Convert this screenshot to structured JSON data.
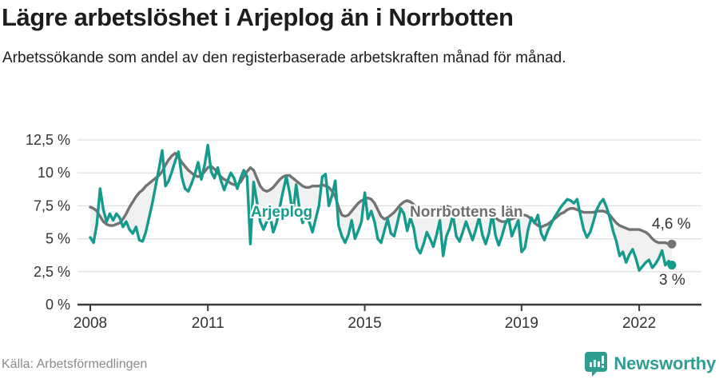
{
  "header": {
    "title": "Lägre arbetslöshet i Arjeplog än i Norrbotten",
    "subtitle": "Arbetssökande som andel av den registerbaserade arbetskraften månad för månad."
  },
  "chart_data": {
    "type": "line",
    "title": "Lägre arbetslöshet i Arjeplog än i Norrbotten",
    "unit": "%",
    "frequency": "monthly",
    "x_start": "2008-01",
    "x_end": "2022-11",
    "ylim": [
      0,
      12.5
    ],
    "grid": "horizontal",
    "legend": "inline-labels",
    "yticks": [
      {
        "value": 0,
        "label": "0 %"
      },
      {
        "value": 2.5,
        "label": "2,5 %"
      },
      {
        "value": 5,
        "label": "5 %"
      },
      {
        "value": 7.5,
        "label": "7,5 %"
      },
      {
        "value": 10,
        "label": "10 %"
      },
      {
        "value": 12.5,
        "label": "12,5 %"
      }
    ],
    "xticks": [
      {
        "label": "2008",
        "month_index": 0
      },
      {
        "label": "2011",
        "month_index": 36
      },
      {
        "label": "2015",
        "month_index": 84
      },
      {
        "label": "2019",
        "month_index": 132
      },
      {
        "label": "2022",
        "month_index": 168
      }
    ],
    "series": [
      {
        "name": "Norrbottens län",
        "color": "#737373",
        "end_label": "4,6 %",
        "values": [
          7.4,
          7.3,
          7.1,
          6.7,
          6.3,
          6.1,
          6.0,
          6.0,
          6.1,
          6.2,
          6.5,
          6.9,
          7.4,
          7.8,
          8.2,
          8.5,
          8.7,
          9.0,
          9.2,
          9.4,
          9.6,
          9.8,
          10.1,
          10.6,
          11.0,
          11.3,
          11.5,
          11.2,
          10.8,
          10.5,
          10.2,
          10.0,
          9.8,
          9.7,
          9.8,
          10.1,
          10.4,
          10.5,
          10.3,
          10.0,
          9.7,
          9.5,
          9.4,
          9.2,
          9.1,
          9.1,
          9.3,
          9.7,
          10.1,
          10.4,
          10.2,
          9.6,
          9.0,
          8.7,
          8.6,
          8.7,
          8.9,
          9.2,
          9.5,
          9.7,
          9.8,
          9.8,
          9.6,
          9.4,
          9.2,
          9.0,
          8.9,
          8.9,
          9.0,
          9.0,
          9.0,
          9.1,
          9.0,
          8.9,
          8.6,
          8.2,
          7.4,
          6.8,
          6.7,
          6.8,
          7.1,
          7.4,
          7.7,
          7.9,
          8.0,
          8.1,
          8.0,
          7.7,
          7.2,
          6.7,
          6.5,
          6.6,
          6.8,
          7.0,
          7.3,
          7.6,
          7.8,
          7.9,
          7.8,
          7.6,
          7.3,
          7.0,
          6.8,
          6.9,
          7.0,
          7.1,
          7.2,
          7.3,
          7.5,
          7.5,
          7.4,
          7.2,
          7.0,
          6.8,
          6.7,
          6.7,
          6.8,
          6.9,
          7.0,
          7.1,
          7.2,
          7.2,
          7.1,
          6.9,
          6.6,
          6.4,
          6.3,
          6.3,
          6.4,
          6.5,
          6.6,
          6.7,
          6.8,
          6.8,
          6.7,
          6.5,
          6.2,
          6.0,
          5.9,
          6.0,
          6.1,
          6.3,
          6.5,
          6.7,
          6.9,
          7.0,
          7.2,
          7.3,
          7.3,
          7.2,
          7.1,
          7.0,
          7.0,
          7.0,
          7.0,
          7.1,
          7.1,
          7.1,
          7.0,
          6.8,
          6.5,
          6.2,
          6.0,
          5.9,
          5.8,
          5.7,
          5.7,
          5.7,
          5.7,
          5.6,
          5.5,
          5.3,
          5.0,
          4.8,
          4.7,
          4.7,
          4.7,
          4.6,
          4.6
        ]
      },
      {
        "name": "Arjeplog",
        "color": "#149B8C",
        "end_label": "3 %",
        "values": [
          5.1,
          4.7,
          6.1,
          8.8,
          7.2,
          6.3,
          6.9,
          6.4,
          6.9,
          6.6,
          5.9,
          6.3,
          5.7,
          5.4,
          5.9,
          4.9,
          4.8,
          5.5,
          6.6,
          7.7,
          9.0,
          10.3,
          11.7,
          9.0,
          9.4,
          10.1,
          10.9,
          11.6,
          9.7,
          8.8,
          8.6,
          9.2,
          9.9,
          10.8,
          9.5,
          10.6,
          12.1,
          10.1,
          9.6,
          10.4,
          9.4,
          8.7,
          9.4,
          10.0,
          9.6,
          8.8,
          9.6,
          10.2,
          9.7,
          4.6,
          9.3,
          7.8,
          6.3,
          5.7,
          6.3,
          6.8,
          5.5,
          6.2,
          7.4,
          8.6,
          9.7,
          8.5,
          6.8,
          9.1,
          7.3,
          6.2,
          6.8,
          6.3,
          5.5,
          6.5,
          7.5,
          9.7,
          9.9,
          7.5,
          8.3,
          9.4,
          6.0,
          5.2,
          4.7,
          5.3,
          6.4,
          5.0,
          5.6,
          6.3,
          8.5,
          6.5,
          7.1,
          6.3,
          5.0,
          4.7,
          5.6,
          6.5,
          5.4,
          5.2,
          6.2,
          7.3,
          6.9,
          5.6,
          6.6,
          5.8,
          4.3,
          3.9,
          4.6,
          5.5,
          5.0,
          4.4,
          5.3,
          6.4,
          3.7,
          5.2,
          5.8,
          6.8,
          5.2,
          4.8,
          5.5,
          6.3,
          5.6,
          4.9,
          5.7,
          6.6,
          5.3,
          4.6,
          5.4,
          6.9,
          5.3,
          4.5,
          5.2,
          6.1,
          6.6,
          5.2,
          5.8,
          6.4,
          4.0,
          4.3,
          5.7,
          6.6,
          6.2,
          6.8,
          5.4,
          4.9,
          5.6,
          6.1,
          6.6,
          7.0,
          7.4,
          7.7,
          8.0,
          7.9,
          7.7,
          8.0,
          6.8,
          5.7,
          5.1,
          5.5,
          6.3,
          7.2,
          7.7,
          8.0,
          7.4,
          6.6,
          5.6,
          4.8,
          3.7,
          4.0,
          3.2,
          3.8,
          4.2,
          3.5,
          2.6,
          2.9,
          3.2,
          3.4,
          2.8,
          3.1,
          3.5,
          4.1,
          3.0,
          3.3,
          3.0
        ]
      }
    ]
  },
  "colors": {
    "arjeplog": "#149B8C",
    "norrbotten": "#737373",
    "gridline": "#e0e0e0",
    "axis": "#3a3a3a",
    "tick_text": "#333333",
    "difference_area": "#f1f1f1",
    "brand_teal": "#2E9E93"
  },
  "footer": {
    "source": "Källa: Arbetsförmedlingen",
    "brand": "Newsworthy"
  }
}
